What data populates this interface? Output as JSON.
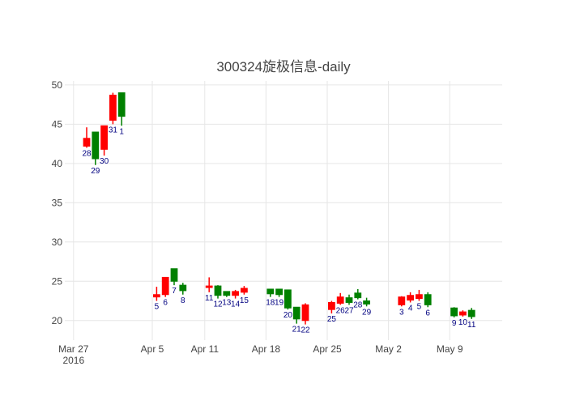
{
  "chart_data": {
    "type": "candlestick",
    "title": "300324旋极信息-daily",
    "x_axis": {
      "type": "date",
      "range": [
        "2016-03-26",
        "2016-05-15"
      ],
      "ticks": [
        {
          "date": "2016-03-27",
          "label": "Mar 27",
          "sublabel": "2016"
        },
        {
          "date": "2016-04-05",
          "label": "Apr 5"
        },
        {
          "date": "2016-04-11",
          "label": "Apr 11"
        },
        {
          "date": "2016-04-18",
          "label": "Apr 18"
        },
        {
          "date": "2016-04-25",
          "label": "Apr 25"
        },
        {
          "date": "2016-05-02",
          "label": "May 2"
        },
        {
          "date": "2016-05-09",
          "label": "May 9"
        }
      ]
    },
    "y_axis": {
      "range": [
        17.5,
        50.5
      ],
      "ticks": [
        20,
        25,
        30,
        35,
        40,
        45,
        50
      ]
    },
    "grid": true,
    "colors": {
      "increasing": "#ff0000",
      "decreasing": "#008000",
      "annotation": "#000080",
      "grid": "#e6e6e6",
      "tick_text": "#444444",
      "title": "#444444"
    },
    "candles": [
      {
        "date": "2016-03-28",
        "open": 42.2,
        "high": 44.6,
        "low": 42.0,
        "close": 43.2,
        "label": "28"
      },
      {
        "date": "2016-03-29",
        "open": 44.0,
        "high": 44.0,
        "low": 39.8,
        "close": 40.6,
        "label": "29"
      },
      {
        "date": "2016-03-30",
        "open": 41.8,
        "high": 44.8,
        "low": 41.0,
        "close": 44.8,
        "label": "30"
      },
      {
        "date": "2016-03-31",
        "open": 45.5,
        "high": 49.0,
        "low": 45.0,
        "close": 48.7,
        "label": "31"
      },
      {
        "date": "2016-04-01",
        "open": 49.0,
        "high": 49.0,
        "low": 44.8,
        "close": 46.0,
        "label": "1"
      },
      {
        "date": "2016-04-05",
        "open": 23.0,
        "high": 24.3,
        "low": 22.5,
        "close": 23.3,
        "label": "5"
      },
      {
        "date": "2016-04-06",
        "open": 23.3,
        "high": 25.5,
        "low": 23.0,
        "close": 25.5,
        "label": "6"
      },
      {
        "date": "2016-04-07",
        "open": 26.6,
        "high": 26.6,
        "low": 24.5,
        "close": 25.0,
        "label": "7"
      },
      {
        "date": "2016-04-08",
        "open": 24.5,
        "high": 24.8,
        "low": 23.3,
        "close": 23.8,
        "label": "8"
      },
      {
        "date": "2016-04-11",
        "open": 24.2,
        "high": 25.5,
        "low": 23.6,
        "close": 24.4,
        "label": "11"
      },
      {
        "date": "2016-04-12",
        "open": 24.4,
        "high": 24.5,
        "low": 22.8,
        "close": 23.2,
        "label": "12"
      },
      {
        "date": "2016-04-13",
        "open": 23.7,
        "high": 23.7,
        "low": 23.0,
        "close": 23.2,
        "label": "13"
      },
      {
        "date": "2016-04-14",
        "open": 23.2,
        "high": 23.9,
        "low": 22.8,
        "close": 23.7,
        "label": "14"
      },
      {
        "date": "2016-04-15",
        "open": 23.6,
        "high": 24.4,
        "low": 23.3,
        "close": 24.1,
        "label": "15"
      },
      {
        "date": "2016-04-18",
        "open": 24.0,
        "high": 24.0,
        "low": 23.0,
        "close": 23.4,
        "label": "18"
      },
      {
        "date": "2016-04-19",
        "open": 24.0,
        "high": 24.0,
        "low": 23.0,
        "close": 23.3,
        "label": "19"
      },
      {
        "date": "2016-04-20",
        "open": 23.9,
        "high": 23.9,
        "low": 21.4,
        "close": 21.6,
        "label": "20"
      },
      {
        "date": "2016-04-21",
        "open": 21.7,
        "high": 21.7,
        "low": 19.6,
        "close": 20.2,
        "label": "21"
      },
      {
        "date": "2016-04-22",
        "open": 20.0,
        "high": 22.2,
        "low": 19.5,
        "close": 22.0,
        "label": "22"
      },
      {
        "date": "2016-04-25",
        "open": 21.4,
        "high": 22.5,
        "low": 20.9,
        "close": 22.3,
        "label": "25"
      },
      {
        "date": "2016-04-26",
        "open": 22.2,
        "high": 23.5,
        "low": 22.0,
        "close": 23.0,
        "label": "26"
      },
      {
        "date": "2016-04-27",
        "open": 22.9,
        "high": 23.3,
        "low": 22.0,
        "close": 22.3,
        "label": "27"
      },
      {
        "date": "2016-04-28",
        "open": 23.5,
        "high": 24.0,
        "low": 22.7,
        "close": 22.9,
        "label": "28"
      },
      {
        "date": "2016-04-29",
        "open": 22.5,
        "high": 22.9,
        "low": 21.8,
        "close": 22.1,
        "label": "29"
      },
      {
        "date": "2016-05-03",
        "open": 22.0,
        "high": 23.1,
        "low": 21.8,
        "close": 23.0,
        "label": "3"
      },
      {
        "date": "2016-05-04",
        "open": 22.6,
        "high": 23.6,
        "low": 22.3,
        "close": 23.2,
        "label": "4"
      },
      {
        "date": "2016-05-05",
        "open": 22.8,
        "high": 23.9,
        "low": 22.5,
        "close": 23.3,
        "label": "5"
      },
      {
        "date": "2016-05-06",
        "open": 23.3,
        "high": 23.6,
        "low": 21.7,
        "close": 22.0,
        "label": "6"
      },
      {
        "date": "2016-05-09",
        "open": 21.6,
        "high": 21.7,
        "low": 20.4,
        "close": 20.6,
        "label": "9"
      },
      {
        "date": "2016-05-10",
        "open": 20.7,
        "high": 21.3,
        "low": 20.5,
        "close": 21.1,
        "label": "10"
      },
      {
        "date": "2016-05-11",
        "open": 21.3,
        "high": 21.6,
        "low": 20.2,
        "close": 20.5,
        "label": "11"
      }
    ]
  }
}
